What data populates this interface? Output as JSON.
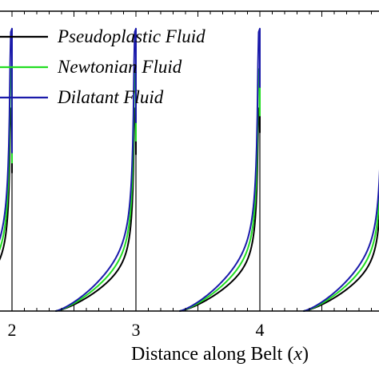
{
  "chart_data": {
    "type": "line",
    "xlabel_main": "Distance along Belt (",
    "xlabel_var": "x",
    "xlabel_close": ")",
    "x_visible_range": [
      1.9,
      5.0
    ],
    "y_visible_range": [
      0,
      1.35
    ],
    "xticks": [
      {
        "value": 2,
        "label": "2"
      },
      {
        "value": 3,
        "label": "3"
      },
      {
        "value": 4,
        "label": "4"
      }
    ],
    "segment_starts": [
      2.35,
      3.35,
      4.35
    ],
    "segment_peaks": [
      {
        "x": 2,
        "peak_pseudoplastic": 0.82,
        "peak_newtonian": 0.88,
        "peak_dilatant": 0.94
      },
      {
        "x": 3,
        "peak_pseudoplastic": 0.93,
        "peak_newtonian": 1.01,
        "peak_dilatant": 1.12
      },
      {
        "x": 4,
        "peak_pseudoplastic": 1.06,
        "peak_newtonian": 1.16,
        "peak_dilatant": 1.33
      }
    ],
    "series": [
      {
        "name": "Pseudoplastic Fluid",
        "color": "#000000",
        "base_height": 0.46
      },
      {
        "name": "Newtonian Fluid",
        "color": "#22dd22",
        "base_height": 0.55
      },
      {
        "name": "Dilatant Fluid",
        "color": "#1a1aaa",
        "base_height": 0.64
      }
    ],
    "legend_position": "top-left",
    "grid": false
  }
}
